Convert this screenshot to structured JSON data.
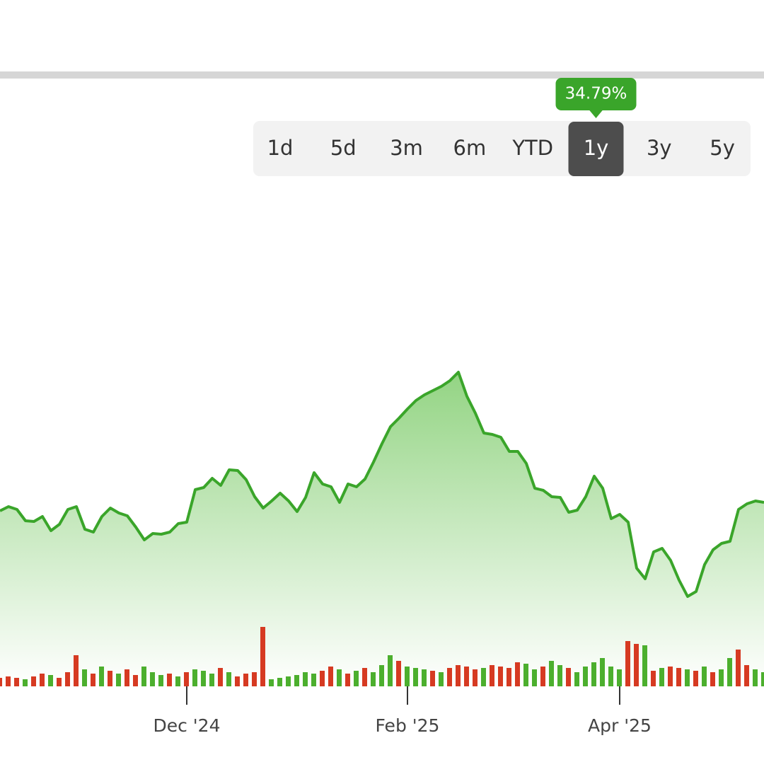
{
  "controls": {
    "ranges": [
      "1d",
      "5d",
      "3m",
      "6m",
      "YTD",
      "1y",
      "3y",
      "5y"
    ],
    "selected": 5,
    "badge": "34.79%"
  },
  "chart_data": {
    "type": "area",
    "color": "#3aa52a",
    "categories": [
      null,
      null,
      null,
      null,
      null,
      null,
      null,
      null,
      null,
      null,
      null,
      null,
      null,
      null,
      null,
      null,
      null,
      null,
      null,
      null,
      null,
      null,
      "Dec '24",
      null,
      null,
      null,
      null,
      null,
      null,
      null,
      null,
      null,
      null,
      null,
      null,
      null,
      null,
      null,
      null,
      null,
      null,
      null,
      null,
      null,
      null,
      null,
      null,
      null,
      "Feb '25",
      null,
      null,
      null,
      null,
      null,
      null,
      null,
      null,
      null,
      null,
      null,
      null,
      null,
      null,
      null,
      null,
      null,
      null,
      null,
      null,
      null,
      null,
      null,
      null,
      "Apr '25",
      null,
      null,
      null,
      null,
      null,
      null,
      null,
      null,
      null,
      null,
      null,
      null,
      null,
      null,
      null,
      null,
      null
    ],
    "values": [
      248,
      254,
      250,
      234,
      233,
      240,
      220,
      229,
      250,
      254,
      222,
      218,
      240,
      252,
      245,
      241,
      225,
      207,
      216,
      215,
      218,
      230,
      232,
      278,
      281,
      294,
      284,
      306,
      305,
      292,
      268,
      252,
      262,
      273,
      262,
      247,
      267,
      302,
      286,
      282,
      260,
      286,
      282,
      293,
      317,
      343,
      367,
      379,
      392,
      404,
      412,
      418,
      424,
      432,
      444,
      410,
      386,
      358,
      356,
      352,
      332,
      332,
      315,
      280,
      277,
      268,
      267,
      246,
      249,
      268,
      297,
      280,
      237,
      243,
      232,
      167,
      152,
      190,
      195,
      178,
      150,
      127,
      134,
      172,
      193,
      202,
      205,
      250,
      258,
      262,
      260
    ],
    "ylim": [
      0,
      860
    ],
    "volume": {
      "axis": "y2",
      "values": [
        12,
        14,
        12,
        10,
        14,
        18,
        16,
        12,
        20,
        44,
        24,
        18,
        28,
        22,
        18,
        24,
        16,
        28,
        20,
        16,
        18,
        14,
        20,
        24,
        22,
        18,
        26,
        20,
        14,
        18,
        20,
        84,
        10,
        12,
        14,
        16,
        20,
        18,
        22,
        28,
        24,
        18,
        22,
        26,
        20,
        30,
        44,
        36,
        28,
        26,
        24,
        22,
        20,
        26,
        30,
        28,
        24,
        26,
        30,
        28,
        26,
        34,
        32,
        24,
        28,
        36,
        30,
        26,
        20,
        28,
        34,
        40,
        28,
        24,
        64,
        60,
        58,
        22,
        26,
        28,
        26,
        24,
        22,
        28,
        20,
        24,
        40,
        52,
        30,
        24,
        20
      ],
      "colors": [
        "#d63a22",
        "#d63a22",
        "#d63a22",
        "#4caf2e",
        "#d63a22",
        "#d63a22",
        "#4caf2e",
        "#d63a22",
        "#d63a22",
        "#d63a22",
        "#4caf2e",
        "#d63a22",
        "#4caf2e",
        "#d63a22",
        "#4caf2e",
        "#d63a22",
        "#d63a22",
        "#4caf2e",
        "#4caf2e",
        "#4caf2e",
        "#d63a22",
        "#4caf2e",
        "#d63a22",
        "#4caf2e",
        "#4caf2e",
        "#4caf2e",
        "#d63a22",
        "#4caf2e",
        "#d63a22",
        "#d63a22",
        "#d63a22",
        "#d63a22",
        "#4caf2e",
        "#4caf2e",
        "#4caf2e",
        "#4caf2e",
        "#4caf2e",
        "#4caf2e",
        "#d63a22",
        "#d63a22",
        "#4caf2e",
        "#d63a22",
        "#4caf2e",
        "#d63a22",
        "#4caf2e",
        "#4caf2e",
        "#4caf2e",
        "#d63a22",
        "#4caf2e",
        "#4caf2e",
        "#4caf2e",
        "#d63a22",
        "#4caf2e",
        "#d63a22",
        "#d63a22",
        "#d63a22",
        "#d63a22",
        "#4caf2e",
        "#d63a22",
        "#d63a22",
        "#d63a22",
        "#d63a22",
        "#4caf2e",
        "#4caf2e",
        "#d63a22",
        "#4caf2e",
        "#4caf2e",
        "#d63a22",
        "#4caf2e",
        "#4caf2e",
        "#4caf2e",
        "#4caf2e",
        "#4caf2e",
        "#4caf2e",
        "#d63a22",
        "#d63a22",
        "#4caf2e",
        "#d63a22",
        "#4caf2e",
        "#d63a22",
        "#d63a22",
        "#4caf2e",
        "#d63a22",
        "#4caf2e",
        "#d63a22",
        "#4caf2e",
        "#4caf2e",
        "#d63a22",
        "#d63a22",
        "#4caf2e",
        "#4caf2e"
      ]
    },
    "y2lim": [
      0,
      860
    ]
  }
}
